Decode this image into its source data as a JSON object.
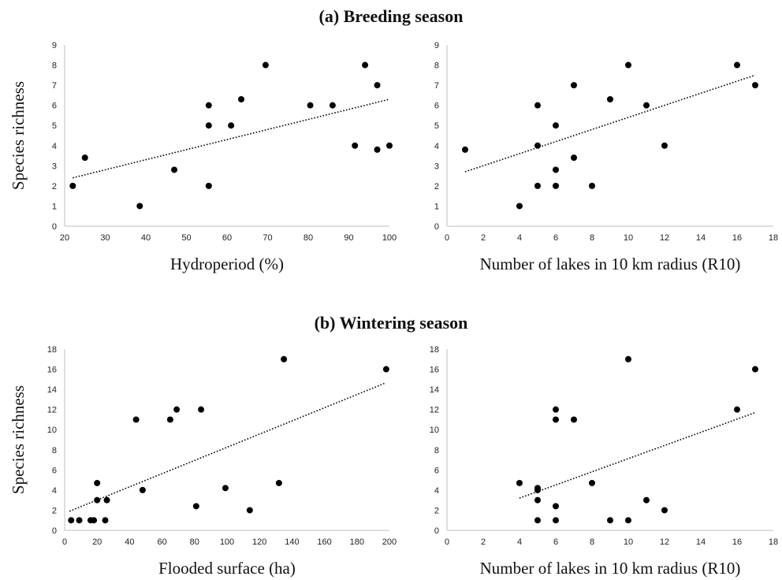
{
  "headings": {
    "a": "(a) Breeding season",
    "b": "(b) Wintering season"
  },
  "colors": {
    "points": "#000000",
    "trend": "#000000",
    "axis": "#bfbfbf"
  },
  "chart_data": [
    {
      "type": "scatter",
      "xlabel": "Hydroperiod (%)",
      "ylabel": "Species richness",
      "xlim": [
        20,
        100
      ],
      "xticks": [
        20,
        30,
        40,
        50,
        60,
        70,
        80,
        90,
        100
      ],
      "ylim": [
        0,
        9
      ],
      "yticks": [
        0,
        1,
        2,
        3,
        4,
        5,
        6,
        7,
        8,
        9
      ],
      "trendline": {
        "style": "dotted",
        "from": [
          22,
          2.4
        ],
        "to": [
          100,
          6.3
        ]
      },
      "x": [
        22,
        25,
        38.5,
        47,
        55.5,
        55.5,
        55.5,
        61,
        63.5,
        69.5,
        80.5,
        86,
        91.5,
        94,
        97,
        97,
        100
      ],
      "y": [
        2,
        3.4,
        1,
        2.8,
        6,
        5,
        2,
        5,
        6.3,
        8,
        6,
        6,
        4,
        8,
        7,
        3.8,
        4
      ]
    },
    {
      "type": "scatter",
      "xlabel": "Number of lakes in 10 km radius (R10)",
      "ylabel": "",
      "xlim": [
        0,
        18
      ],
      "xticks": [
        0,
        2,
        4,
        6,
        8,
        10,
        12,
        14,
        16,
        18
      ],
      "ylim": [
        0,
        9
      ],
      "yticks": [
        0,
        1,
        2,
        3,
        4,
        5,
        6,
        7,
        8,
        9
      ],
      "trendline": {
        "style": "dotted",
        "from": [
          1,
          2.7
        ],
        "to": [
          17,
          7.5
        ]
      },
      "x": [
        1,
        4,
        5,
        5,
        5,
        6,
        6,
        6,
        7,
        7,
        8,
        9,
        10,
        11,
        12,
        16,
        17
      ],
      "y": [
        3.8,
        1,
        6,
        4,
        2,
        5,
        2.8,
        2,
        7,
        3.4,
        2,
        6.3,
        8,
        6,
        4,
        8,
        7
      ]
    },
    {
      "type": "scatter",
      "xlabel": "Flooded surface (ha)",
      "ylabel": "Species richness",
      "xlim": [
        0,
        200
      ],
      "xticks": [
        0,
        20,
        40,
        60,
        80,
        100,
        120,
        140,
        160,
        180,
        200
      ],
      "ylim": [
        0,
        18
      ],
      "yticks": [
        0,
        2,
        4,
        6,
        8,
        10,
        12,
        14,
        16,
        18
      ],
      "trendline": {
        "style": "dotted",
        "from": [
          3,
          1.9
        ],
        "to": [
          197,
          14.6
        ]
      },
      "x": [
        4,
        9,
        16,
        18,
        20,
        20,
        25,
        26,
        44,
        48,
        65,
        69,
        81,
        84,
        99,
        114,
        132,
        135,
        198
      ],
      "y": [
        1,
        1,
        1,
        1,
        4.7,
        3,
        1,
        3,
        11,
        4,
        11,
        12,
        2.4,
        12,
        4.2,
        2,
        4.7,
        17,
        16
      ]
    },
    {
      "type": "scatter",
      "xlabel": "Number of lakes in 10 km radius (R10)",
      "ylabel": "",
      "xlim": [
        0,
        18
      ],
      "xticks": [
        0,
        2,
        4,
        6,
        8,
        10,
        12,
        14,
        16,
        18
      ],
      "ylim": [
        0,
        18
      ],
      "yticks": [
        0,
        2,
        4,
        6,
        8,
        10,
        12,
        14,
        16,
        18
      ],
      "trendline": {
        "style": "dotted",
        "from": [
          4,
          3.2
        ],
        "to": [
          17,
          11.7
        ]
      },
      "x": [
        4,
        5,
        5,
        5,
        5,
        6,
        6,
        6,
        6,
        7,
        8,
        9,
        10,
        10,
        11,
        12,
        16,
        17
      ],
      "y": [
        4.7,
        4.2,
        4,
        3,
        1,
        12,
        11,
        2.4,
        1,
        11,
        4.7,
        1,
        17,
        1,
        3,
        2,
        12,
        16
      ]
    }
  ]
}
